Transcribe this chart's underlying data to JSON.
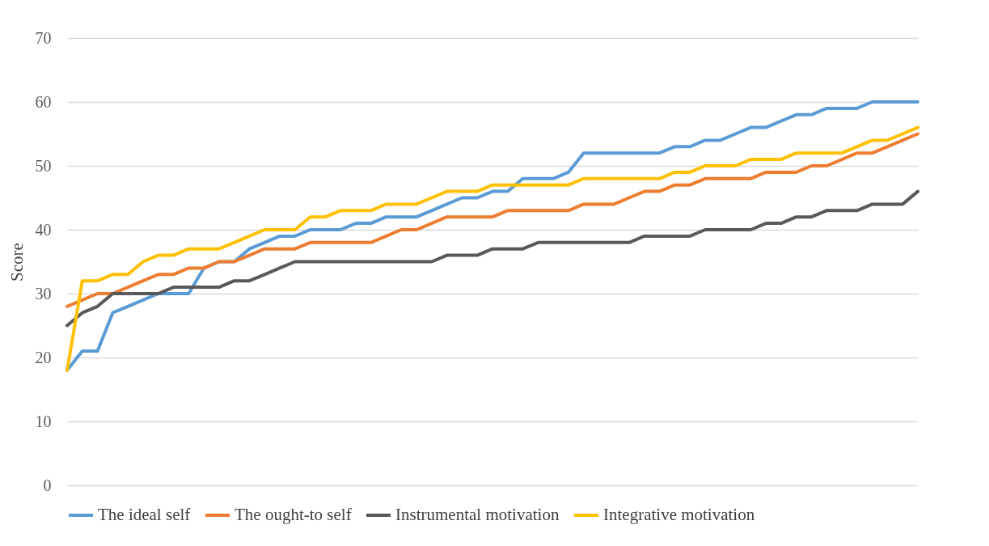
{
  "chart_data": {
    "type": "line",
    "ylabel": "Score",
    "categories": [
      null,
      null,
      null,
      null,
      null,
      null,
      null,
      null,
      null,
      null,
      null,
      null,
      null,
      null,
      null,
      null,
      null,
      null,
      null,
      null,
      null,
      null,
      null,
      null,
      null,
      null,
      null,
      null,
      null,
      null,
      null,
      null,
      null,
      null,
      null,
      null,
      null,
      null,
      null,
      null,
      null,
      null,
      null,
      null,
      null,
      null,
      null,
      null,
      null,
      null,
      null,
      null,
      null,
      null,
      null,
      null,
      null
    ],
    "series": [
      {
        "name": "The ideal self",
        "color": "#5b9bd5",
        "values": [
          18,
          21,
          21,
          27,
          28,
          29,
          30,
          30,
          30,
          34,
          35,
          35,
          37,
          38,
          39,
          39,
          40,
          40,
          40,
          41,
          41,
          42,
          42,
          42,
          43,
          44,
          45,
          45,
          46,
          46,
          48,
          48,
          48,
          49,
          52,
          52,
          52,
          52,
          52,
          52,
          53,
          53,
          54,
          54,
          55,
          56,
          56,
          57,
          58,
          58,
          59,
          59,
          59,
          60,
          60,
          60,
          60
        ]
      },
      {
        "name": "The ought-to self",
        "color": "#ed7d31",
        "values": [
          28,
          29,
          30,
          30,
          31,
          32,
          33,
          33,
          34,
          34,
          35,
          35,
          36,
          37,
          37,
          37,
          38,
          38,
          38,
          38,
          38,
          39,
          40,
          40,
          41,
          42,
          42,
          42,
          42,
          43,
          43,
          43,
          43,
          43,
          44,
          44,
          44,
          45,
          46,
          46,
          47,
          47,
          48,
          48,
          48,
          48,
          49,
          49,
          49,
          50,
          50,
          51,
          52,
          52,
          53,
          54,
          55
        ]
      },
      {
        "name": "Instrumental motivation",
        "color": "#595959",
        "values": [
          25,
          27,
          28,
          30,
          30,
          30,
          30,
          31,
          31,
          31,
          31,
          32,
          32,
          33,
          34,
          35,
          35,
          35,
          35,
          35,
          35,
          35,
          35,
          35,
          35,
          36,
          36,
          36,
          37,
          37,
          37,
          38,
          38,
          38,
          38,
          38,
          38,
          38,
          39,
          39,
          39,
          39,
          40,
          40,
          40,
          40,
          41,
          41,
          42,
          42,
          43,
          43,
          43,
          44,
          44,
          44,
          46
        ]
      },
      {
        "name": "Integrative motivation",
        "color": "#ffc000",
        "values": [
          18,
          32,
          32,
          33,
          33,
          35,
          36,
          36,
          37,
          37,
          37,
          38,
          39,
          40,
          40,
          40,
          42,
          42,
          43,
          43,
          43,
          44,
          44,
          44,
          45,
          46,
          46,
          46,
          47,
          47,
          47,
          47,
          47,
          47,
          48,
          48,
          48,
          48,
          48,
          48,
          49,
          49,
          50,
          50,
          50,
          51,
          51,
          51,
          52,
          52,
          52,
          52,
          53,
          54,
          54,
          55,
          56
        ]
      }
    ],
    "ylim": [
      0,
      70
    ],
    "yticks": [
      0,
      10,
      20,
      30,
      40,
      50,
      60,
      70
    ],
    "grid": "y",
    "legend": "bottom",
    "tick_labels": "y",
    "line_style": "solid",
    "marker": "none"
  }
}
